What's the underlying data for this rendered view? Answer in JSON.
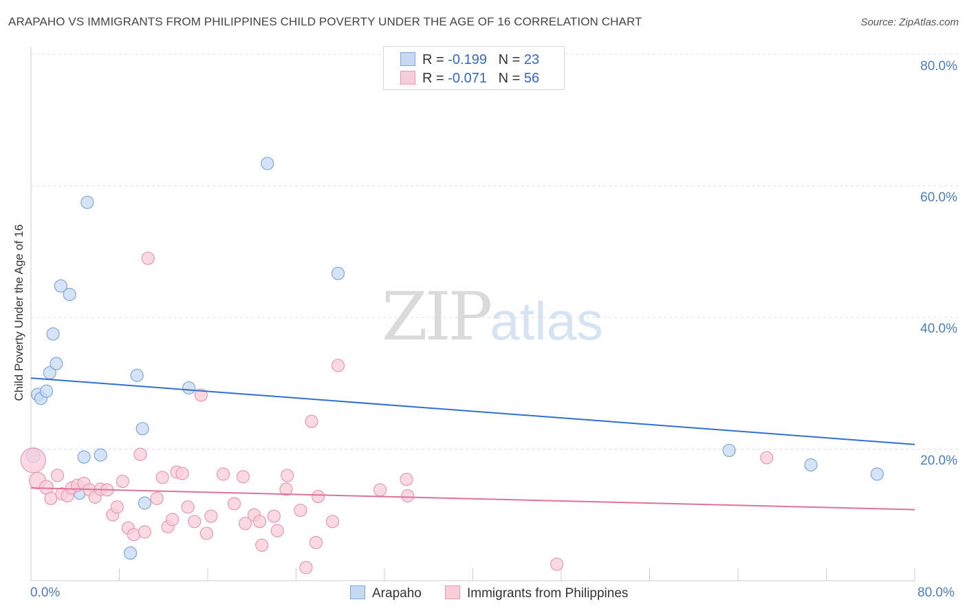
{
  "title": "ARAPAHO VS IMMIGRANTS FROM PHILIPPINES CHILD POVERTY UNDER THE AGE OF 16 CORRELATION CHART",
  "source": "Source: ZipAtlas.com",
  "watermark": {
    "zip": "ZIP",
    "atlas": "atlas"
  },
  "legend": {
    "rows": [
      {
        "r_label": "R =",
        "r_value": "-0.199",
        "n_label": "N =",
        "n_value": "23"
      },
      {
        "r_label": "R =",
        "r_value": "-0.071",
        "n_label": "N =",
        "n_value": "56"
      }
    ]
  },
  "colors": {
    "blue_fill": "#c5d9f3",
    "blue_stroke": "#7fa6d9",
    "blue_line": "#2f6fd0",
    "pink_fill": "#f9ccd9",
    "pink_stroke": "#e898b0",
    "pink_line": "#e0709a",
    "grid": "#dddddd",
    "tick_text": "#4a7cc0"
  },
  "chart_data": {
    "type": "scatter",
    "title": "ARAPAHO VS IMMIGRANTS FROM PHILIPPINES CHILD POVERTY UNDER THE AGE OF 16 CORRELATION CHART",
    "xlabel": "",
    "ylabel": "Child Poverty Under the Age of 16",
    "xlim": [
      0,
      80
    ],
    "ylim": [
      0,
      80
    ],
    "x_tick_labels": [
      "0.0%",
      "80.0%"
    ],
    "y_ticks": [
      {
        "value": 20,
        "label": "20.0%"
      },
      {
        "value": 40,
        "label": "40.0%"
      },
      {
        "value": 60,
        "label": "60.0%"
      },
      {
        "value": 80,
        "label": "80.0%"
      }
    ],
    "grid": true,
    "legend_position": "top-center",
    "series": [
      {
        "name": "Arapaho",
        "color": "#c5d9f3",
        "r": -0.199,
        "n": 23,
        "trend": {
          "x": [
            0,
            80
          ],
          "y": [
            30.8,
            20.7
          ]
        },
        "points": [
          [
            0.2,
            19.0,
            10
          ],
          [
            0.6,
            28.3,
            9
          ],
          [
            0.9,
            27.7,
            9
          ],
          [
            1.4,
            28.8,
            9
          ],
          [
            1.7,
            31.6,
            9
          ],
          [
            2.0,
            37.5,
            9
          ],
          [
            2.3,
            33.0,
            9
          ],
          [
            2.7,
            44.8,
            9
          ],
          [
            3.5,
            43.5,
            9
          ],
          [
            4.4,
            13.2,
            8
          ],
          [
            4.8,
            18.8,
            9
          ],
          [
            5.1,
            57.5,
            9
          ],
          [
            6.3,
            19.1,
            9
          ],
          [
            9.0,
            4.2,
            9
          ],
          [
            9.6,
            31.2,
            9
          ],
          [
            10.1,
            23.1,
            9
          ],
          [
            10.3,
            11.8,
            9
          ],
          [
            14.3,
            29.3,
            9
          ],
          [
            21.4,
            63.4,
            9
          ],
          [
            27.8,
            46.7,
            9
          ],
          [
            63.2,
            19.8,
            9
          ],
          [
            70.6,
            17.6,
            9
          ],
          [
            76.6,
            16.2,
            9
          ]
        ]
      },
      {
        "name": "Immigrants from Philippines",
        "color": "#f9ccd9",
        "r": -0.071,
        "n": 56,
        "trend": {
          "x": [
            0,
            80
          ],
          "y": [
            14.1,
            10.8
          ]
        },
        "points": [
          [
            0.2,
            18.3,
            18
          ],
          [
            0.6,
            15.2,
            12
          ],
          [
            1.4,
            14.2,
            10
          ],
          [
            1.8,
            12.5,
            9
          ],
          [
            2.4,
            16.0,
            9
          ],
          [
            2.8,
            13.2,
            9
          ],
          [
            3.3,
            12.9,
            9
          ],
          [
            3.7,
            14.1,
            9
          ],
          [
            4.2,
            14.5,
            9
          ],
          [
            4.8,
            14.8,
            9
          ],
          [
            5.3,
            13.8,
            9
          ],
          [
            5.8,
            12.7,
            9
          ],
          [
            6.3,
            13.9,
            9
          ],
          [
            6.9,
            13.8,
            9
          ],
          [
            7.4,
            10.0,
            9
          ],
          [
            7.8,
            11.2,
            9
          ],
          [
            8.3,
            15.1,
            9
          ],
          [
            8.8,
            8.0,
            9
          ],
          [
            9.3,
            7.0,
            9
          ],
          [
            9.9,
            19.2,
            9
          ],
          [
            10.3,
            7.4,
            9
          ],
          [
            10.6,
            49.0,
            9
          ],
          [
            11.4,
            12.5,
            9
          ],
          [
            11.9,
            15.7,
            9
          ],
          [
            12.4,
            8.2,
            9
          ],
          [
            12.8,
            9.3,
            9
          ],
          [
            13.2,
            16.5,
            9
          ],
          [
            13.7,
            16.3,
            9
          ],
          [
            14.2,
            11.2,
            9
          ],
          [
            14.8,
            9.0,
            9
          ],
          [
            15.4,
            28.2,
            9
          ],
          [
            15.9,
            7.2,
            9
          ],
          [
            16.3,
            9.8,
            9
          ],
          [
            17.4,
            16.2,
            9
          ],
          [
            18.4,
            11.7,
            9
          ],
          [
            19.2,
            15.8,
            9
          ],
          [
            19.4,
            8.7,
            9
          ],
          [
            20.2,
            10.0,
            9
          ],
          [
            20.7,
            9.0,
            9
          ],
          [
            20.9,
            5.4,
            9
          ],
          [
            22.0,
            9.8,
            9
          ],
          [
            22.3,
            7.6,
            9
          ],
          [
            23.1,
            13.9,
            9
          ],
          [
            23.2,
            16.0,
            9
          ],
          [
            24.4,
            10.7,
            9
          ],
          [
            24.9,
            2.0,
            9
          ],
          [
            25.4,
            24.2,
            9
          ],
          [
            25.8,
            5.8,
            9
          ],
          [
            26.0,
            12.8,
            9
          ],
          [
            27.3,
            9.0,
            9
          ],
          [
            27.8,
            32.7,
            9
          ],
          [
            31.6,
            13.8,
            9
          ],
          [
            34.0,
            15.4,
            9
          ],
          [
            34.1,
            12.9,
            9
          ],
          [
            47.6,
            2.5,
            9
          ],
          [
            66.6,
            18.7,
            9
          ]
        ]
      }
    ]
  },
  "bottom_legend": [
    "Arapaho",
    "Immigrants from Philippines"
  ]
}
